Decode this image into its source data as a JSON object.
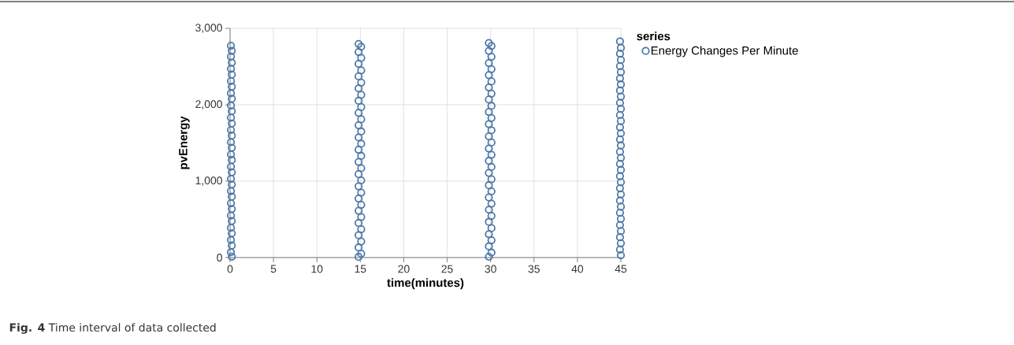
{
  "chart_data": {
    "type": "scatter",
    "xlabel": "time(minutes)",
    "ylabel": "pvEnergy",
    "legend_title": "series",
    "annotations": [
      "**Fig. 4** Time interval of data collected"
    ],
    "xlim": [
      0,
      45
    ],
    "ylim": [
      0,
      3000
    ],
    "xticks": [
      0,
      5,
      10,
      15,
      20,
      25,
      30,
      35,
      40,
      45
    ],
    "yticks": [
      0,
      {
        "value": 1000,
        "label": "1,000"
      },
      {
        "value": 2000,
        "label": "2,000"
      },
      {
        "value": 3000,
        "label": "3,000"
      }
    ],
    "grid": true,
    "legend": "right",
    "marker": "circle",
    "series": [
      {
        "name": "Energy Changes Per Minute",
        "color": "#4c78a8",
        "x": [
          0.1,
          0.2,
          0.1,
          0.2,
          0.1,
          0.2,
          0.1,
          0.2,
          0.1,
          0.2,
          0.1,
          0.2,
          0.1,
          0.2,
          0.1,
          0.2,
          0.1,
          0.2,
          0.1,
          0.2,
          0.1,
          0.2,
          0.1,
          0.2,
          0.1,
          0.2,
          0.1,
          0.2,
          0.1,
          0.2,
          0.1,
          0.2,
          0.1,
          0.2,
          0.1,
          0.2,
          14.8,
          15.1,
          14.8,
          15.1,
          14.8,
          15.1,
          14.8,
          15.1,
          14.8,
          15.1,
          14.8,
          15.1,
          14.8,
          15.1,
          14.8,
          15.1,
          14.8,
          15.1,
          14.8,
          15.1,
          14.8,
          15.1,
          14.8,
          15.1,
          14.8,
          15.1,
          14.8,
          15.1,
          14.8,
          15.1,
          14.8,
          15.1,
          14.8,
          15.1,
          14.8,
          15.1,
          14.8,
          29.8,
          30.1,
          29.8,
          30.1,
          29.8,
          30.1,
          29.8,
          30.1,
          29.8,
          30.1,
          29.8,
          30.1,
          29.8,
          30.1,
          29.8,
          30.1,
          29.8,
          30.1,
          29.8,
          30.1,
          29.8,
          30.1,
          29.8,
          30.1,
          29.8,
          30.1,
          29.8,
          30.1,
          29.8,
          30.1,
          29.8,
          30.1,
          29.8,
          30.1,
          29.8,
          30.1,
          29.8,
          44.9,
          45,
          44.9,
          45,
          44.9,
          45,
          44.9,
          45,
          44.9,
          45,
          44.9,
          45,
          44.9,
          45,
          44.9,
          45,
          44.9,
          45,
          44.9,
          45,
          44.9,
          45,
          44.9,
          45,
          44.9,
          45,
          44.9,
          45,
          44.9,
          45,
          44.9,
          45,
          44.9,
          45,
          44.9,
          45
        ],
        "values": [
          2772,
          2705,
          2630,
          2551,
          2470,
          2395,
          2310,
          2236,
          2150,
          2078,
          1990,
          1915,
          1832,
          1755,
          1670,
          1596,
          1510,
          1437,
          1350,
          1276,
          1190,
          1115,
          1030,
          955,
          870,
          797,
          710,
          636,
          550,
          478,
          390,
          317,
          230,
          158,
          70,
          12,
          2795,
          2760,
          2690,
          2612,
          2535,
          2450,
          2372,
          2290,
          2214,
          2130,
          2052,
          1970,
          1893,
          1810,
          1731,
          1650,
          1572,
          1490,
          1412,
          1330,
          1252,
          1170,
          1091,
          1010,
          932,
          850,
          772,
          690,
          612,
          530,
          452,
          370,
          292,
          210,
          132,
          50,
          8,
          2808,
          2770,
          2705,
          2628,
          2546,
          2466,
          2388,
          2305,
          2226,
          2146,
          2068,
          1985,
          1906,
          1826,
          1747,
          1665,
          1586,
          1506,
          1427,
          1345,
          1266,
          1186,
          1107,
          1025,
          946,
          866,
          787,
          705,
          626,
          546,
          467,
          385,
          306,
          226,
          147,
          65,
          10,
          2830,
          2745,
          2668,
          2586,
          2505,
          2427,
          2345,
          2266,
          2186,
          2107,
          2025,
          1946,
          1866,
          1787,
          1705,
          1626,
          1546,
          1467,
          1385,
          1306,
          1226,
          1147,
          1065,
          986,
          906,
          827,
          745,
          666,
          586,
          507,
          425,
          346,
          266,
          187,
          105,
          30
        ]
      }
    ]
  }
}
